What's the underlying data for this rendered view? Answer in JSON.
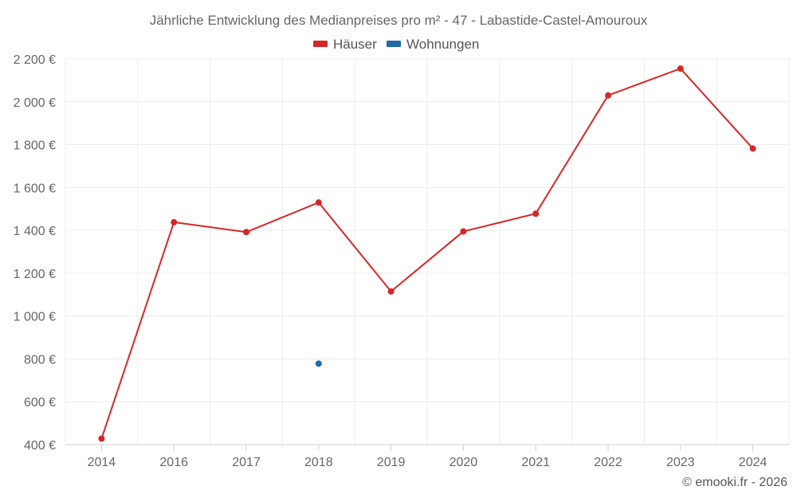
{
  "chart_data": {
    "type": "line",
    "title": "Jährliche Entwicklung des Medianpreises pro m² - 47 - Labastide-Castel-Amouroux",
    "categories": [
      "2014",
      "2016",
      "2017",
      "2018",
      "2019",
      "2020",
      "2021",
      "2022",
      "2023",
      "2024"
    ],
    "ylim": [
      400,
      2200
    ],
    "yticks": [
      400,
      600,
      800,
      1000,
      1200,
      1400,
      1600,
      1800,
      2000,
      2200
    ],
    "ytick_labels": [
      "400 €",
      "600 €",
      "800 €",
      "1 000 €",
      "1 200 €",
      "1 400 €",
      "1 600 €",
      "1 800 €",
      "2 000 €",
      "2 200 €"
    ],
    "grid": true,
    "legend_position": "top-center",
    "series": [
      {
        "name": "Häuser",
        "color": "#d62728",
        "values": [
          428,
          1438,
          1392,
          1530,
          1115,
          1395,
          1478,
          2030,
          2155,
          1782
        ]
      },
      {
        "name": "Wohnungen",
        "color": "#1f6aa5",
        "values": [
          null,
          null,
          null,
          778,
          null,
          null,
          null,
          null,
          null,
          null
        ]
      }
    ],
    "credit": "© emooki.fr - 2026"
  }
}
